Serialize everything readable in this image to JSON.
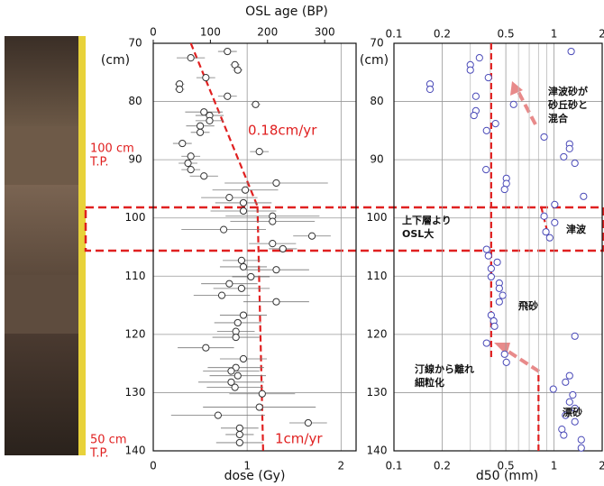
{
  "photo_labels": [
    [
      "100 cm",
      "T.P."
    ],
    [
      "50 cm",
      "T.P."
    ]
  ],
  "chart_data": [
    {
      "type": "scatter",
      "x_label": "dose (Gy)",
      "x2_label": "OSL age (BP)",
      "y_label": "(cm)",
      "xlim": [
        0,
        2.16
      ],
      "xticks": [
        0,
        1,
        2
      ],
      "x2lim": [
        0,
        355
      ],
      "x2ticks": [
        0,
        100,
        200,
        300
      ],
      "ylim": [
        70,
        140
      ],
      "y_reversed": true,
      "yticks": [
        70,
        80,
        90,
        100,
        110,
        120,
        130,
        140
      ],
      "grid": true,
      "series": [
        {
          "color": "#333333",
          "x": [
            0.4,
            0.79,
            0.87,
            0.9,
            0.56,
            0.28,
            0.28,
            0.79,
            1.09,
            0.54,
            0.6,
            0.6,
            0.5,
            0.5,
            0.31,
            1.13,
            0.4,
            0.37,
            0.4,
            0.54,
            0.98,
            1.31,
            0.81,
            0.96,
            0.96,
            1.27,
            1.27,
            0.75,
            1.69,
            1.27,
            1.38,
            0.94,
            0.96,
            1.31,
            1.04,
            0.81,
            0.94,
            0.73,
            1.31,
            0.96,
            0.9,
            0.88,
            0.88,
            0.56,
            0.96,
            0.88,
            0.83,
            0.9,
            0.83,
            0.87,
            1.16,
            1.13,
            0.69,
            1.65,
            0.92,
            0.92,
            0.92
          ],
          "values": [
            72.5,
            71.4,
            73.7,
            74.6,
            75.9,
            77.0,
            77.9,
            79.1,
            80.5,
            81.8,
            82.4,
            83.3,
            84.2,
            85.3,
            87.2,
            88.6,
            89.4,
            90.6,
            91.7,
            92.8,
            95.2,
            94.0,
            96.5,
            97.4,
            98.8,
            99.7,
            100.6,
            102.0,
            103.1,
            104.4,
            105.3,
            107.3,
            108.4,
            108.9,
            110.1,
            111.3,
            112.1,
            113.3,
            114.4,
            116.7,
            118.0,
            119.5,
            120.5,
            122.3,
            124.2,
            125.7,
            126.3,
            127.1,
            128.2,
            129.1,
            130.2,
            132.5,
            133.9,
            135.2,
            136.1,
            137.2,
            138.6
          ],
          "xerr": [
            0.15,
            0.1,
            0.05,
            0.05,
            0.1,
            0.05,
            0.05,
            0.1,
            0.05,
            0.2,
            0.15,
            0.15,
            0.15,
            0.1,
            0.1,
            0.1,
            0.1,
            0.1,
            0.1,
            0.15,
            0.35,
            0.55,
            0.3,
            0.3,
            0.35,
            0.5,
            0.45,
            0.45,
            0.2,
            0.25,
            0.15,
            0.2,
            0.25,
            0.35,
            0.2,
            0.3,
            0.3,
            0.3,
            0.35,
            0.25,
            0.25,
            0.2,
            0.25,
            0.3,
            0.25,
            0.3,
            0.3,
            0.3,
            0.35,
            0.3,
            0.35,
            0.6,
            0.5,
            0.2,
            0.2,
            0.15,
            0.25
          ]
        }
      ],
      "lines": [
        {
          "color": "#e02020",
          "x": [
            0.4,
            1.11
          ],
          "values": [
            70,
            98
          ]
        },
        {
          "color": "#e02020",
          "x": [
            1.11,
            1.17
          ],
          "values": [
            98,
            140
          ]
        }
      ],
      "annotations": [
        "0.18cm/yr",
        "1cm/yr"
      ]
    },
    {
      "type": "scatter",
      "x_label": "d50 (mm)",
      "y_label": "(cm)",
      "xscale": "log",
      "xlim": [
        0.1,
        2
      ],
      "xticks": [
        0.1,
        0.2,
        0.5,
        1,
        2
      ],
      "xminor": [
        0.3,
        0.4,
        0.6,
        0.7,
        0.8,
        0.9
      ],
      "ylim": [
        70,
        140
      ],
      "y_reversed": true,
      "yticks": [
        70,
        80,
        90,
        100,
        110,
        120,
        130,
        140
      ],
      "grid": true,
      "series": [
        {
          "color": "#4a4ab8",
          "x": [
            1.28,
            0.342,
            0.3,
            0.3,
            0.389,
            0.168,
            0.168,
            0.325,
            0.559,
            0.325,
            0.316,
            0.431,
            0.379,
            0.867,
            1.25,
            1.25,
            1.15,
            1.35,
            0.376,
            0.504,
            0.504,
            0.491,
            1.53,
            1.01,
            0.867,
            1.01,
            0.89,
            0.94,
            0.379,
            0.389,
            0.442,
            0.405,
            0.405,
            0.455,
            0.455,
            0.478,
            0.455,
            0.405,
            0.42,
            0.425,
            1.35,
            0.379,
            0.491,
            0.504,
            1.25,
            1.18,
            0.99,
            1.31,
            1.25,
            1.35,
            1.18,
            1.35,
            1.12,
            1.15,
            1.48,
            1.48
          ],
          "values": [
            71.4,
            72.5,
            73.7,
            74.6,
            75.9,
            77.0,
            77.9,
            79.1,
            80.5,
            81.6,
            82.4,
            83.8,
            85.0,
            86.1,
            87.3,
            88.1,
            89.5,
            90.6,
            91.7,
            93.2,
            94.1,
            95.1,
            96.3,
            97.7,
            99.7,
            100.8,
            102.4,
            103.4,
            105.4,
            106.5,
            107.6,
            108.7,
            110.1,
            111.2,
            112.1,
            113.3,
            114.4,
            116.7,
            117.7,
            118.6,
            120.3,
            121.5,
            123.4,
            124.8,
            127.1,
            128.2,
            129.4,
            130.4,
            131.6,
            132.7,
            133.9,
            135.0,
            136.3,
            137.3,
            138.1,
            139.5
          ]
        }
      ],
      "lines": [
        {
          "color": "#e02020",
          "x": [
            0.405,
            0.405
          ],
          "values": [
            70,
            124
          ]
        },
        {
          "color": "#e02020",
          "x": [
            0.8,
            0.8
          ],
          "values": [
            127,
            140
          ]
        },
        {
          "color": "#e02020",
          "x": [
            0.83,
            0.94
          ],
          "values": [
            98,
            104
          ]
        }
      ],
      "annotations": [
        [
          "津波砂が",
          "砂丘砂と",
          "混合"
        ],
        [
          "上下層より",
          "OSL大"
        ],
        [
          "津波"
        ],
        [
          "飛砂"
        ],
        [
          "汀線から離れ",
          "細粒化"
        ],
        [
          "漂砂"
        ]
      ]
    }
  ]
}
